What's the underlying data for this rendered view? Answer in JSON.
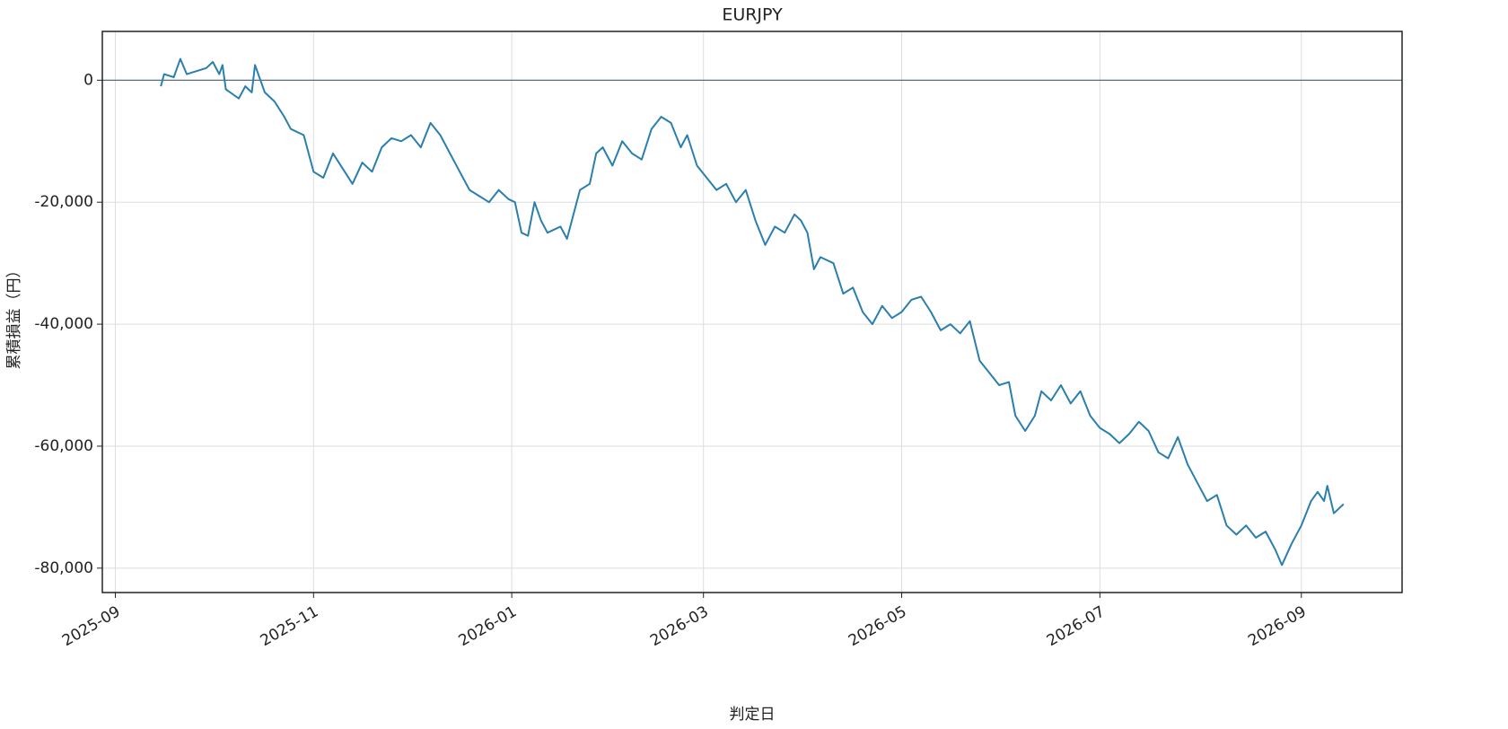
{
  "chart_data": {
    "type": "line",
    "title": "EURJPY",
    "xlabel": "判定日",
    "ylabel": "累積損益（円）",
    "x": [
      "2025-09-15",
      "2025-09-16",
      "2025-09-19",
      "2025-09-21",
      "2025-09-23",
      "2025-09-26",
      "2025-09-29",
      "2025-10-01",
      "2025-10-03",
      "2025-10-04",
      "2025-10-05",
      "2025-10-09",
      "2025-10-11",
      "2025-10-13",
      "2025-10-14",
      "2025-10-17",
      "2025-10-20",
      "2025-10-23",
      "2025-10-25",
      "2025-10-29",
      "2025-11-01",
      "2025-11-04",
      "2025-11-07",
      "2025-11-10",
      "2025-11-13",
      "2025-11-16",
      "2025-11-19",
      "2025-11-22",
      "2025-11-25",
      "2025-11-28",
      "2025-12-01",
      "2025-12-04",
      "2025-12-07",
      "2025-12-10",
      "2025-12-13",
      "2025-12-16",
      "2025-12-19",
      "2025-12-22",
      "2025-12-25",
      "2025-12-28",
      "2025-12-31",
      "2026-01-02",
      "2026-01-04",
      "2026-01-06",
      "2026-01-08",
      "2026-01-10",
      "2026-01-12",
      "2026-01-16",
      "2026-01-18",
      "2026-01-20",
      "2026-01-22",
      "2026-01-25",
      "2026-01-27",
      "2026-01-29",
      "2026-02-01",
      "2026-02-04",
      "2026-02-07",
      "2026-02-10",
      "2026-02-13",
      "2026-02-16",
      "2026-02-19",
      "2026-02-22",
      "2026-02-24",
      "2026-02-27",
      "2026-03-02",
      "2026-03-05",
      "2026-03-08",
      "2026-03-11",
      "2026-03-14",
      "2026-03-17",
      "2026-03-20",
      "2026-03-23",
      "2026-03-26",
      "2026-03-29",
      "2026-03-31",
      "2026-04-02",
      "2026-04-04",
      "2026-04-06",
      "2026-04-10",
      "2026-04-13",
      "2026-04-16",
      "2026-04-19",
      "2026-04-22",
      "2026-04-25",
      "2026-04-28",
      "2026-05-01",
      "2026-05-04",
      "2026-05-07",
      "2026-05-10",
      "2026-05-13",
      "2026-05-16",
      "2026-05-19",
      "2026-05-22",
      "2026-05-25",
      "2026-05-28",
      "2026-05-31",
      "2026-06-03",
      "2026-06-05",
      "2026-06-08",
      "2026-06-11",
      "2026-06-13",
      "2026-06-16",
      "2026-06-19",
      "2026-06-22",
      "2026-06-25",
      "2026-06-28",
      "2026-07-01",
      "2026-07-04",
      "2026-07-07",
      "2026-07-10",
      "2026-07-13",
      "2026-07-16",
      "2026-07-19",
      "2026-07-22",
      "2026-07-25",
      "2026-07-28",
      "2026-07-31",
      "2026-08-03",
      "2026-08-06",
      "2026-08-09",
      "2026-08-12",
      "2026-08-15",
      "2026-08-18",
      "2026-08-21",
      "2026-08-24",
      "2026-08-26",
      "2026-08-29",
      "2026-09-01",
      "2026-09-04",
      "2026-09-06",
      "2026-09-08",
      "2026-09-09",
      "2026-09-11",
      "2026-09-14"
    ],
    "series": [
      {
        "name": "EURJPY",
        "color": "#2a7fae",
        "values": [
          -1000,
          1000,
          500,
          3500,
          1000,
          1500,
          2000,
          3000,
          1000,
          2500,
          -1500,
          -3000,
          -1000,
          -2000,
          2500,
          -2000,
          -3500,
          -6000,
          -8000,
          -9000,
          -15000,
          -16000,
          -12000,
          -14500,
          -17000,
          -13500,
          -15000,
          -11000,
          -9500,
          -10000,
          -9000,
          -11000,
          -7000,
          -9000,
          -12000,
          -15000,
          -18000,
          -19000,
          -20000,
          -18000,
          -19500,
          -20000,
          -25000,
          -25500,
          -20000,
          -23000,
          -25000,
          -24000,
          -26000,
          -22000,
          -18000,
          -17000,
          -12000,
          -11000,
          -14000,
          -10000,
          -12000,
          -13000,
          -8000,
          -6000,
          -7000,
          -11000,
          -9000,
          -14000,
          -16000,
          -18000,
          -17000,
          -20000,
          -18000,
          -23000,
          -27000,
          -24000,
          -25000,
          -22000,
          -23000,
          -25000,
          -31000,
          -29000,
          -30000,
          -35000,
          -34000,
          -38000,
          -40000,
          -37000,
          -39000,
          -38000,
          -36000,
          -35500,
          -38000,
          -41000,
          -40000,
          -41500,
          -39500,
          -46000,
          -48000,
          -50000,
          -49500,
          -55000,
          -57500,
          -55000,
          -51000,
          -52500,
          -50000,
          -53000,
          -51000,
          -55000,
          -57000,
          -58000,
          -59500,
          -58000,
          -56000,
          -57500,
          -61000,
          -62000,
          -58500,
          -63000,
          -66000,
          -69000,
          -68000,
          -73000,
          -74500,
          -73000,
          -75000,
          -74000,
          -77000,
          -79500,
          -76000,
          -73000,
          -69000,
          -67500,
          -69000,
          -66500,
          -71000,
          -69500
        ]
      }
    ],
    "xlim": [
      "2025-08-28",
      "2026-10-02"
    ],
    "xticks": [
      "2025-09",
      "2025-11",
      "2026-01",
      "2026-03",
      "2026-05",
      "2026-07",
      "2026-09"
    ],
    "ylim": [
      -84000,
      8000
    ],
    "yticks": [
      {
        "value": -80000,
        "label": "-80,000"
      },
      {
        "value": -60000,
        "label": "-60,000"
      },
      {
        "value": -40000,
        "label": "-40,000"
      },
      {
        "value": -20000,
        "label": "-20,000"
      },
      0
    ],
    "hline": 0,
    "grid": true
  }
}
